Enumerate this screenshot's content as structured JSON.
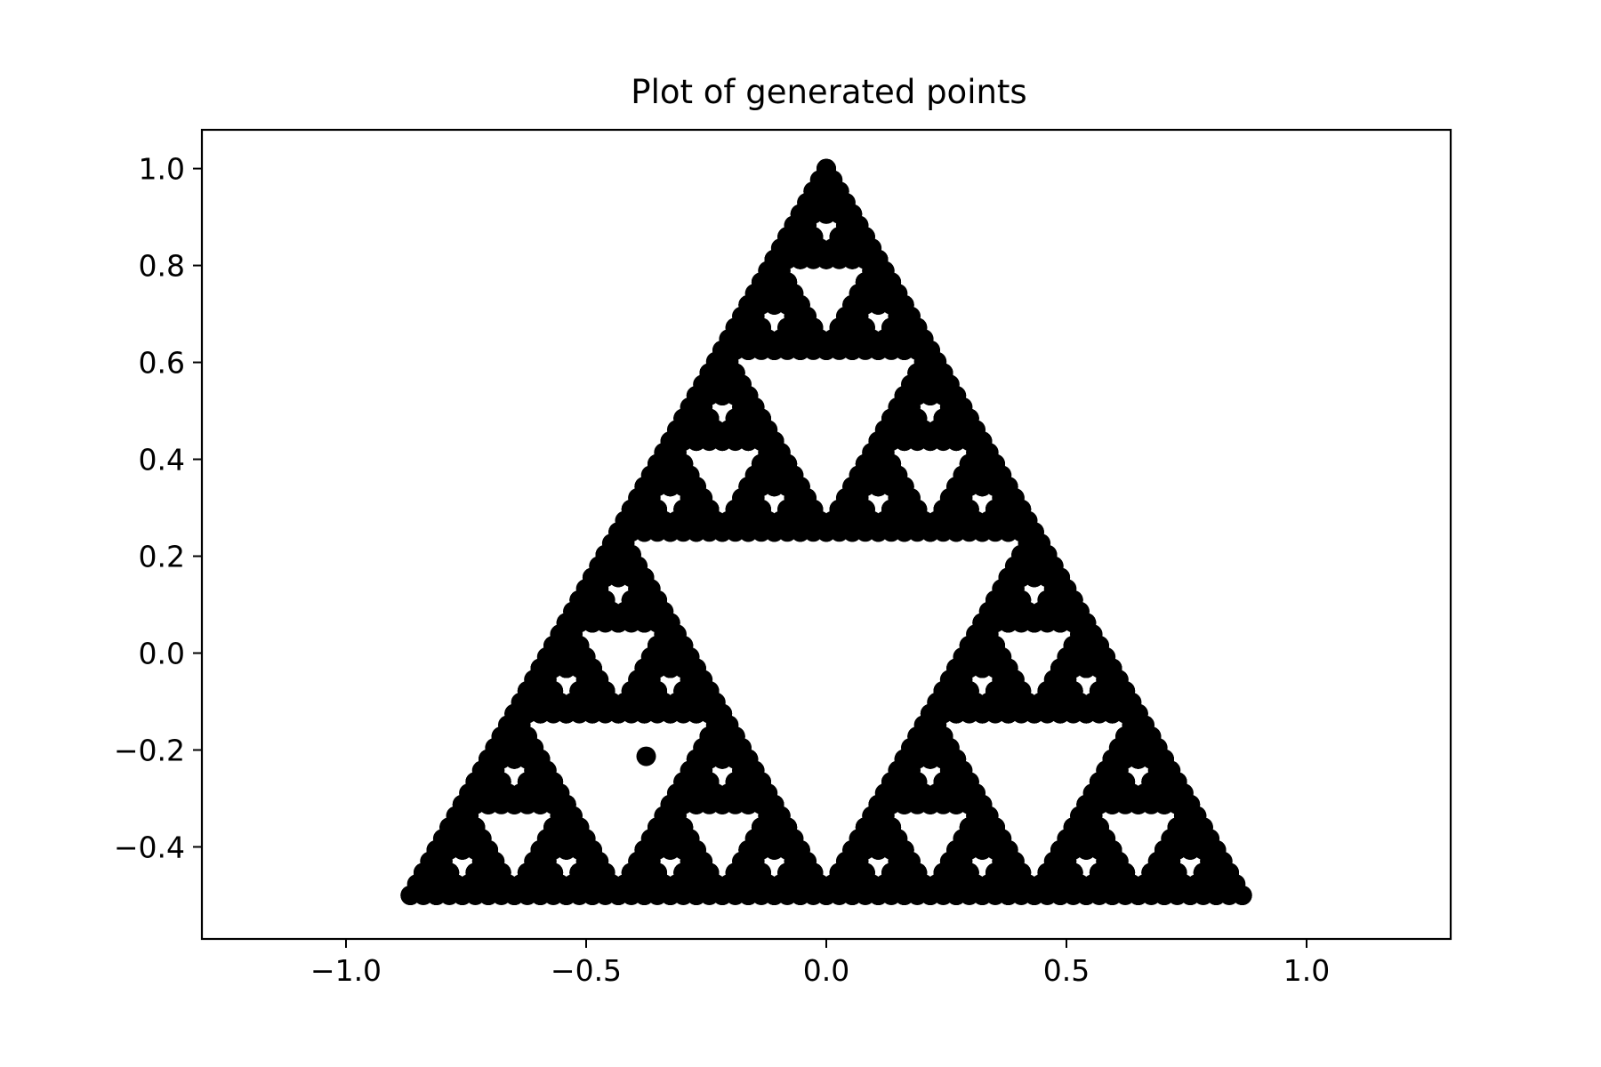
{
  "chart_data": {
    "type": "scatter",
    "title": "Plot of generated points",
    "xlabel": "",
    "ylabel": "",
    "xlim": [
      -1.3,
      1.3
    ],
    "ylim": [
      -0.59,
      1.08
    ],
    "grid": false,
    "legend": "none",
    "x_ticks": [
      -1.0,
      -0.5,
      0.0,
      0.5,
      1.0
    ],
    "x_tick_labels": [
      "−1.0",
      "−0.5",
      "0.0",
      "0.5",
      "1.0"
    ],
    "y_ticks": [
      -0.4,
      -0.2,
      0.0,
      0.2,
      0.4,
      0.6,
      0.8,
      1.0
    ],
    "y_tick_labels": [
      "−0.4",
      "−0.2",
      "0.0",
      "0.2",
      "0.4",
      "0.6",
      "0.8",
      "1.0"
    ],
    "marker_color": "#000000",
    "vertices": [
      [
        0.0,
        1.0
      ],
      [
        -0.866,
        -0.5
      ],
      [
        0.866,
        -0.5
      ]
    ],
    "sierpinski_depth": 5,
    "series": [
      {
        "values": [
          {
            "x": -0.375,
            "y": -0.213
          },
          {
            "x": 0.0,
            "y": 1.0
          },
          {
            "x": -0.866,
            "y": -0.5
          },
          {
            "x": 0.866,
            "y": -0.5
          }
        ]
      }
    ]
  }
}
